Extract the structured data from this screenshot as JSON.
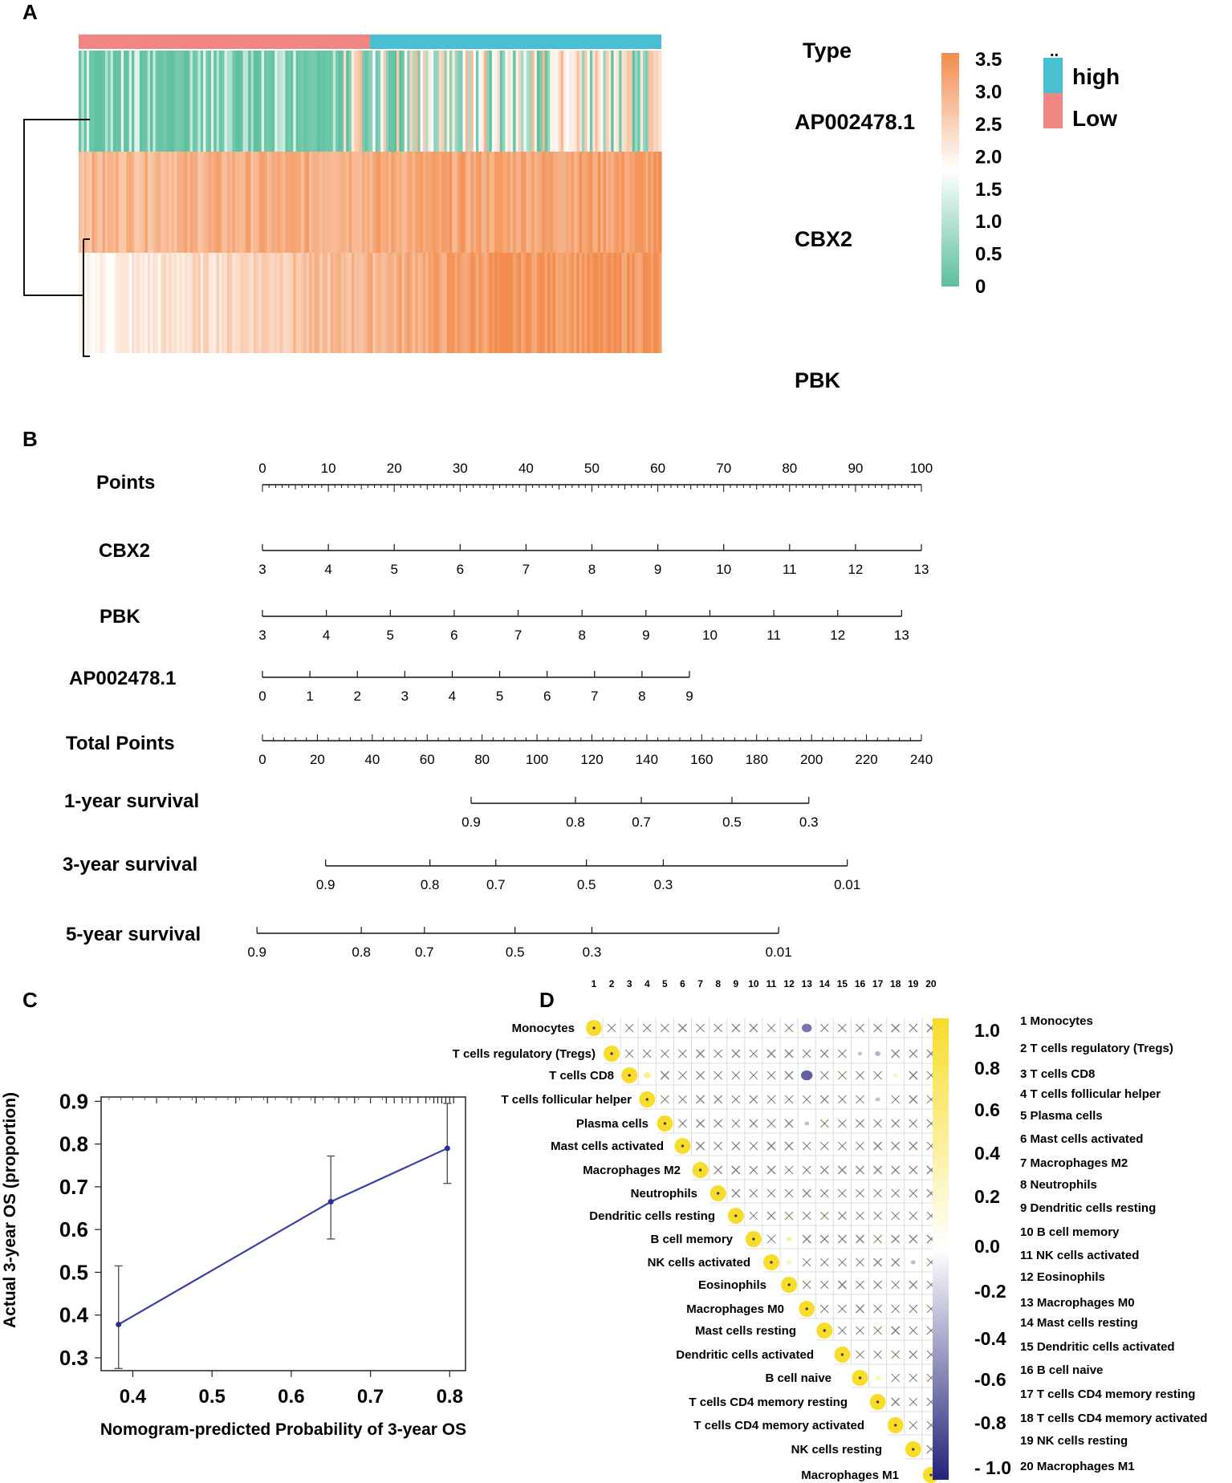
{
  "panels": {
    "A": "A",
    "B": "B",
    "C": "C",
    "D": "D"
  },
  "chart_data": [
    {
      "panel": "A",
      "type": "heatmap",
      "title": "",
      "annotation_title": "Type",
      "rows": [
        "AP002478.1",
        "CBX2",
        "PBK"
      ],
      "group_labels": [
        "high",
        "Low"
      ],
      "group_colors": {
        "high": "#49c0d2",
        "Low": "#f08783"
      },
      "group_split": {
        "Low": 0.5,
        "high": 0.5
      },
      "colorbar": {
        "min": 0,
        "max": 3.6,
        "ticks": [
          "3.5",
          "3.0",
          "2.5",
          "2.0",
          "1.5",
          "1.0",
          "0.5",
          "0"
        ],
        "tick_values": [
          3.5,
          3.0,
          2.5,
          2.0,
          1.5,
          1.0,
          0.5,
          0
        ],
        "low_color": "#5bbf9d",
        "mid_color": "#ffffff",
        "high_color": "#f28b4c"
      },
      "legend_marker": "..",
      "row_means": {
        "AP002478.1": 0.8,
        "CBX2": 3.3,
        "PBK": 2.9
      }
    },
    {
      "panel": "B",
      "type": "nomogram",
      "scales": [
        {
          "name": "Points",
          "ticks_above": true,
          "labels": [
            "0",
            "10",
            "20",
            "30",
            "40",
            "50",
            "60",
            "70",
            "80",
            "90",
            "100"
          ],
          "values": [
            0,
            10,
            20,
            30,
            40,
            50,
            60,
            70,
            80,
            90,
            100
          ],
          "minor": 5
        },
        {
          "name": "CBX2",
          "labels": [
            "3",
            "4",
            "5",
            "6",
            "7",
            "8",
            "9",
            "10",
            "11",
            "12",
            "13"
          ],
          "points": [
            0,
            10,
            20,
            30,
            40,
            50,
            60,
            70,
            80,
            90,
            100
          ]
        },
        {
          "name": "PBK",
          "labels": [
            "3",
            "4",
            "5",
            "6",
            "7",
            "8",
            "9",
            "10",
            "11",
            "12",
            "13"
          ],
          "points": [
            0,
            9.7,
            19.4,
            29.1,
            38.8,
            48.5,
            58.2,
            67.9,
            77.6,
            87.3,
            97
          ]
        },
        {
          "name": "AP002478.1",
          "labels": [
            "0",
            "1",
            "2",
            "3",
            "4",
            "5",
            "6",
            "7",
            "8",
            "9"
          ],
          "points": [
            0,
            7.2,
            14.4,
            21.6,
            28.8,
            36,
            43.2,
            50.4,
            57.6,
            64.8
          ]
        },
        {
          "name": "Total Points",
          "labels": [
            "0",
            "20",
            "40",
            "60",
            "80",
            "100",
            "120",
            "140",
            "160",
            "180",
            "200",
            "220",
            "240"
          ],
          "values": [
            0,
            20,
            40,
            60,
            80,
            100,
            120,
            140,
            160,
            180,
            200,
            220,
            240
          ],
          "minor": 4
        },
        {
          "name": "1-year survival",
          "labels": [
            "0.9",
            "0.8",
            "0.7",
            "0.5",
            "0.3"
          ],
          "total_points": [
            76,
            114,
            138,
            171,
            199
          ]
        },
        {
          "name": "3-year survival",
          "labels": [
            "0.9",
            "0.8",
            "0.7",
            "0.5",
            "0.3",
            "0.01"
          ],
          "total_points": [
            23,
            61,
            85,
            118,
            146,
            213
          ]
        },
        {
          "name": "5-year survival",
          "labels": [
            "0.9",
            "0.8",
            "0.7",
            "0.5",
            "0.3",
            "0.01"
          ],
          "total_points": [
            -2,
            36,
            59,
            92,
            120,
            188
          ]
        }
      ]
    },
    {
      "panel": "C",
      "type": "line",
      "xlabel": "Nomogram-predicted Probability of 3-year OS",
      "ylabel": "Actual 3-year OS (proportion)",
      "xlim": [
        0.36,
        0.82
      ],
      "ylim": [
        0.27,
        0.91
      ],
      "xticks": [
        "0.4",
        "0.5",
        "0.6",
        "0.7",
        "0.8"
      ],
      "xtick_values": [
        0.4,
        0.5,
        0.6,
        0.7,
        0.8
      ],
      "yticks": [
        "0.3",
        "0.4",
        "0.5",
        "0.6",
        "0.7",
        "0.8",
        "0.9"
      ],
      "ytick_values": [
        0.3,
        0.4,
        0.5,
        0.6,
        0.7,
        0.8,
        0.9
      ],
      "points": [
        {
          "x": 0.382,
          "y": 0.378,
          "lo": 0.275,
          "hi": 0.515
        },
        {
          "x": 0.65,
          "y": 0.665,
          "lo": 0.578,
          "hi": 0.772
        },
        {
          "x": 0.797,
          "y": 0.79,
          "lo": 0.708,
          "hi": 0.895
        }
      ],
      "rug": [
        0.43,
        0.48,
        0.53,
        0.57,
        0.6,
        0.63,
        0.66,
        0.68,
        0.7,
        0.72,
        0.73,
        0.74,
        0.75,
        0.76,
        0.77,
        0.78,
        0.785,
        0.79,
        0.795,
        0.8,
        0.805
      ]
    },
    {
      "panel": "D",
      "type": "correlation-matrix",
      "cells": [
        "Monocytes",
        "T cells regulatory (Tregs)",
        "T cells CD8",
        "T cells follicular helper",
        "Plasma cells",
        "Mast cells activated",
        "Macrophages M2",
        "Neutrophils",
        "Dendritic cells resting",
        "B cell memory",
        "NK cells activated",
        "Eosinophils",
        "Macrophages M0",
        "Mast cells resting",
        "Dendritic cells activated",
        "B cell naive",
        "T cells CD4 memory resting",
        "T cells CD4 memory activated",
        "NK cells resting",
        "Macrophages M1"
      ],
      "column_numbers": [
        "1",
        "2",
        "3",
        "4",
        "5",
        "6",
        "7",
        "8",
        "9",
        "10",
        "11",
        "12",
        "13",
        "14",
        "15",
        "16",
        "17",
        "18",
        "19",
        "20"
      ],
      "legend": [
        "1 Monocytes",
        "2 T cells regulatory (Tregs)",
        "3 T cells CD8",
        "4 T cells follicular helper",
        "5 Plasma cells",
        "6 Mast cells activated",
        "7 Macrophages M2",
        "8 Neutrophils",
        "9 Dendritic cells resting",
        "10 B cell memory",
        "11 NK cells activated",
        "12 Eosinophils",
        "13 Macrophages M0",
        "14 Mast cells resting",
        "15 Dendritic cells activated",
        "16 B cell naive",
        "17 T cells CD4 memory resting",
        "18 T cells CD4 memory activated",
        "19 NK cells resting",
        "20 Macrophages M1"
      ],
      "colorbar_ticks": [
        "1.0",
        "0.8",
        "0.6",
        "0.4",
        "0.2",
        "0.0",
        "-0.2",
        "-0.4",
        "-0.6",
        "-0.8",
        "- 1.0"
      ],
      "colorbar_values": [
        1.0,
        0.8,
        0.6,
        0.4,
        0.2,
        0.0,
        -0.2,
        -0.4,
        -0.6,
        -0.8,
        -1.0
      ],
      "colors": {
        "positive": "#f7dc2a",
        "neutral": "#ffffff",
        "negative": "#23237a"
      },
      "notable": [
        {
          "row": 1,
          "col": 13,
          "r": -0.62
        },
        {
          "row": 3,
          "col": 13,
          "r": -0.72
        },
        {
          "row": 3,
          "col": 4,
          "r": 0.46
        },
        {
          "row": 10,
          "col": 12,
          "r": 0.36
        },
        {
          "row": 11,
          "col": 12,
          "r": 0.34
        },
        {
          "row": 16,
          "col": 17,
          "r": 0.35
        },
        {
          "row": 3,
          "col": 18,
          "r": 0.3
        },
        {
          "row": 2,
          "col": 17,
          "r": -0.35
        },
        {
          "row": 2,
          "col": 16,
          "r": -0.28
        },
        {
          "row": 4,
          "col": 17,
          "r": -0.3
        },
        {
          "row": 5,
          "col": 13,
          "r": -0.3
        },
        {
          "row": 11,
          "col": 19,
          "r": -0.3
        }
      ]
    }
  ]
}
